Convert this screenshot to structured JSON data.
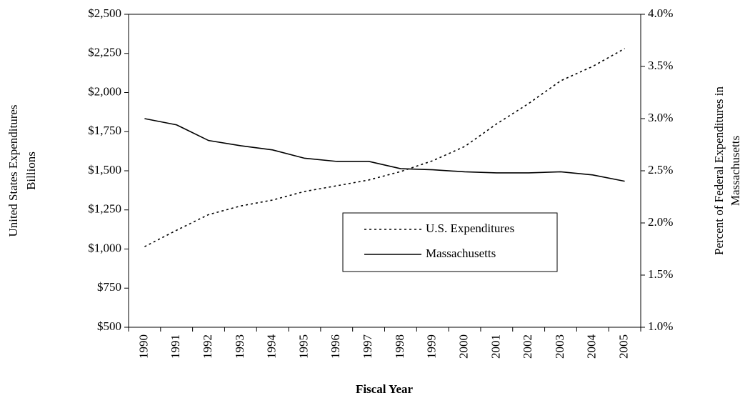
{
  "chart_data": {
    "type": "line",
    "categories": [
      "1990",
      "1991",
      "1992",
      "1993",
      "1994",
      "1995",
      "1996",
      "1997",
      "1998",
      "1999",
      "2000",
      "2001",
      "2002",
      "2003",
      "2004",
      "2005"
    ],
    "series": [
      {
        "name": "U.S. Expenditures",
        "color": "#000000",
        "style": "dotted",
        "values": [
          1015,
          1120,
          1220,
          1275,
          1313,
          1368,
          1404,
          1441,
          1495,
          1564,
          1655,
          1800,
          1930,
          2075,
          2167,
          2281
        ]
      },
      {
        "name": "Massachusetts",
        "color": "#000000",
        "style": "solid",
        "axis": "y2",
        "values": [
          3.0,
          2.94,
          2.79,
          2.74,
          2.7,
          2.62,
          2.59,
          2.59,
          2.52,
          2.51,
          2.49,
          2.48,
          2.48,
          2.49,
          2.46,
          2.4
        ]
      }
    ],
    "ylabel": [
      "United States Expenditures",
      "Billions"
    ],
    "y2label": [
      "Percent of Federal Expenditures in",
      "Massachusetts"
    ],
    "xlabel": "Fiscal Year",
    "ylim": [
      500,
      2500
    ],
    "yticks": [
      {
        "value": 500,
        "label": "$500"
      },
      {
        "value": 750,
        "label": "$750"
      },
      {
        "value": 1000,
        "label": "$1,000"
      },
      {
        "value": 1250,
        "label": "$1,250"
      },
      {
        "value": 1500,
        "label": "$1,500"
      },
      {
        "value": 1750,
        "label": "$1,750"
      },
      {
        "value": 2000,
        "label": "$2,000"
      },
      {
        "value": 2250,
        "label": "$2,250"
      },
      {
        "value": 2500,
        "label": "$2,500"
      }
    ],
    "y2lim": [
      1.0,
      4.0
    ],
    "y2ticks": [
      {
        "value": 1.0,
        "label": "1.0%"
      },
      {
        "value": 1.5,
        "label": "1.5%"
      },
      {
        "value": 2.0,
        "label": "2.0%"
      },
      {
        "value": 2.5,
        "label": "2.5%"
      },
      {
        "value": 3.0,
        "label": "3.0%"
      },
      {
        "value": 3.5,
        "label": "3.5%"
      },
      {
        "value": 4.0,
        "label": "4.0%"
      }
    ],
    "grid": false
  }
}
